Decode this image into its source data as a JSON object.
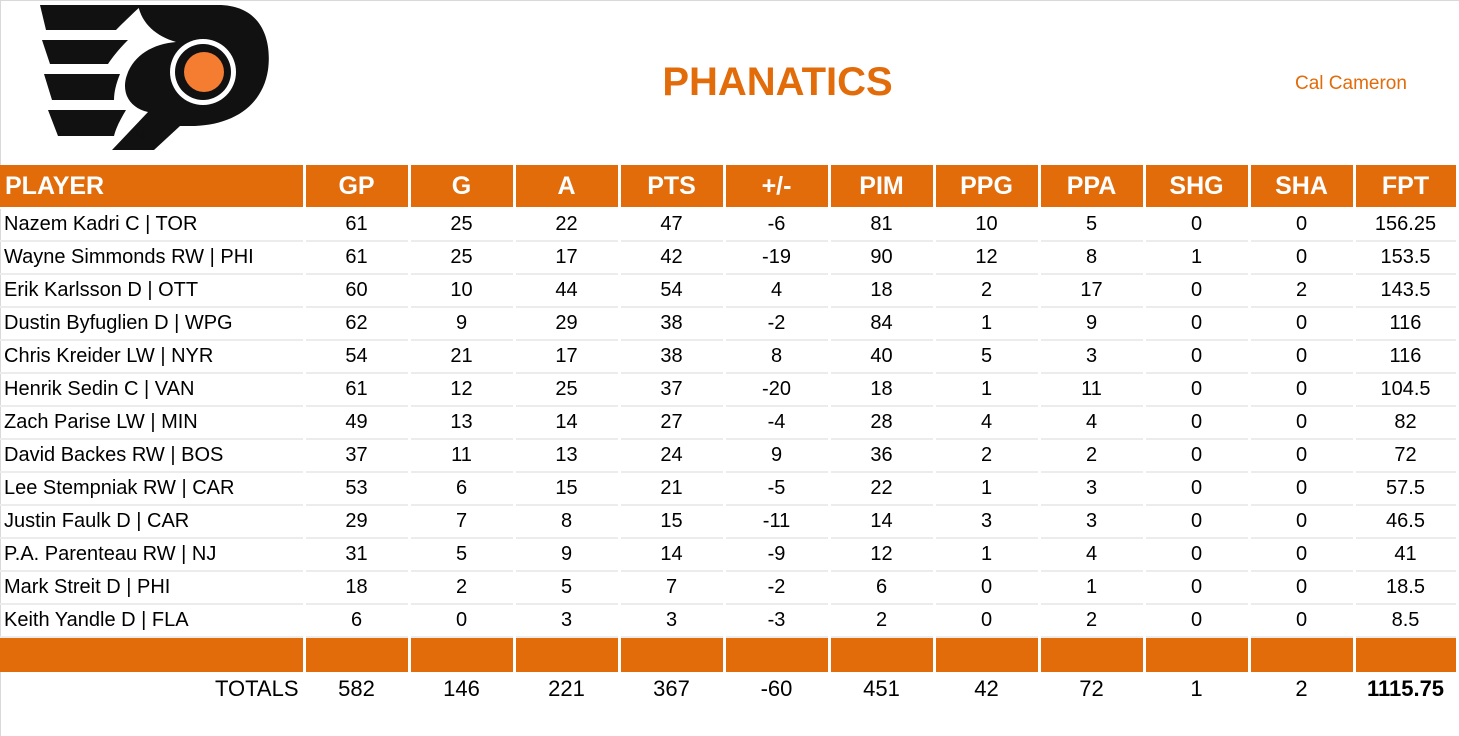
{
  "header": {
    "team_name": "PHANATICS",
    "manager": "Cal Cameron",
    "logo_icon": "flyers-logo-icon"
  },
  "colors": {
    "accent": "#e26b0a",
    "logo_black": "#111111",
    "logo_orange": "#f47d31"
  },
  "columns": [
    "PLAYER",
    "GP",
    "G",
    "A",
    "PTS",
    "+/-",
    "PIM",
    "PPG",
    "PPA",
    "SHG",
    "SHA",
    "FPT"
  ],
  "players": [
    {
      "name": "Nazem Kadri C | TOR",
      "gp": "61",
      "g": "25",
      "a": "22",
      "pts": "47",
      "pm": "-6",
      "pim": "81",
      "ppg": "10",
      "ppa": "5",
      "shg": "0",
      "sha": "0",
      "fpt": "156.25"
    },
    {
      "name": "Wayne Simmonds RW | PHI",
      "gp": "61",
      "g": "25",
      "a": "17",
      "pts": "42",
      "pm": "-19",
      "pim": "90",
      "ppg": "12",
      "ppa": "8",
      "shg": "1",
      "sha": "0",
      "fpt": "153.5"
    },
    {
      "name": "Erik Karlsson D | OTT",
      "gp": "60",
      "g": "10",
      "a": "44",
      "pts": "54",
      "pm": "4",
      "pim": "18",
      "ppg": "2",
      "ppa": "17",
      "shg": "0",
      "sha": "2",
      "fpt": "143.5"
    },
    {
      "name": "Dustin Byfuglien D | WPG",
      "gp": "62",
      "g": "9",
      "a": "29",
      "pts": "38",
      "pm": "-2",
      "pim": "84",
      "ppg": "1",
      "ppa": "9",
      "shg": "0",
      "sha": "0",
      "fpt": "116"
    },
    {
      "name": "Chris Kreider LW | NYR",
      "gp": "54",
      "g": "21",
      "a": "17",
      "pts": "38",
      "pm": "8",
      "pim": "40",
      "ppg": "5",
      "ppa": "3",
      "shg": "0",
      "sha": "0",
      "fpt": "116"
    },
    {
      "name": "Henrik Sedin C | VAN",
      "gp": "61",
      "g": "12",
      "a": "25",
      "pts": "37",
      "pm": "-20",
      "pim": "18",
      "ppg": "1",
      "ppa": "11",
      "shg": "0",
      "sha": "0",
      "fpt": "104.5"
    },
    {
      "name": "Zach Parise LW | MIN",
      "gp": "49",
      "g": "13",
      "a": "14",
      "pts": "27",
      "pm": "-4",
      "pim": "28",
      "ppg": "4",
      "ppa": "4",
      "shg": "0",
      "sha": "0",
      "fpt": "82"
    },
    {
      "name": "David Backes RW | BOS",
      "gp": "37",
      "g": "11",
      "a": "13",
      "pts": "24",
      "pm": "9",
      "pim": "36",
      "ppg": "2",
      "ppa": "2",
      "shg": "0",
      "sha": "0",
      "fpt": "72"
    },
    {
      "name": "Lee Stempniak RW | CAR",
      "gp": "53",
      "g": "6",
      "a": "15",
      "pts": "21",
      "pm": "-5",
      "pim": "22",
      "ppg": "1",
      "ppa": "3",
      "shg": "0",
      "sha": "0",
      "fpt": "57.5"
    },
    {
      "name": "Justin Faulk D | CAR",
      "gp": "29",
      "g": "7",
      "a": "8",
      "pts": "15",
      "pm": "-11",
      "pim": "14",
      "ppg": "3",
      "ppa": "3",
      "shg": "0",
      "sha": "0",
      "fpt": "46.5"
    },
    {
      "name": "P.A. Parenteau RW | NJ",
      "gp": "31",
      "g": "5",
      "a": "9",
      "pts": "14",
      "pm": "-9",
      "pim": "12",
      "ppg": "1",
      "ppa": "4",
      "shg": "0",
      "sha": "0",
      "fpt": "41"
    },
    {
      "name": "Mark Streit D | PHI",
      "gp": "18",
      "g": "2",
      "a": "5",
      "pts": "7",
      "pm": "-2",
      "pim": "6",
      "ppg": "0",
      "ppa": "1",
      "shg": "0",
      "sha": "0",
      "fpt": "18.5"
    },
    {
      "name": "Keith Yandle D | FLA",
      "gp": "6",
      "g": "0",
      "a": "3",
      "pts": "3",
      "pm": "-3",
      "pim": "2",
      "ppg": "0",
      "ppa": "2",
      "shg": "0",
      "sha": "0",
      "fpt": "8.5"
    }
  ],
  "totals": {
    "label": "TOTALS",
    "gp": "582",
    "g": "146",
    "a": "221",
    "pts": "367",
    "pm": "-60",
    "pim": "451",
    "ppg": "42",
    "ppa": "72",
    "shg": "1",
    "sha": "2",
    "fpt": "1115.75"
  }
}
